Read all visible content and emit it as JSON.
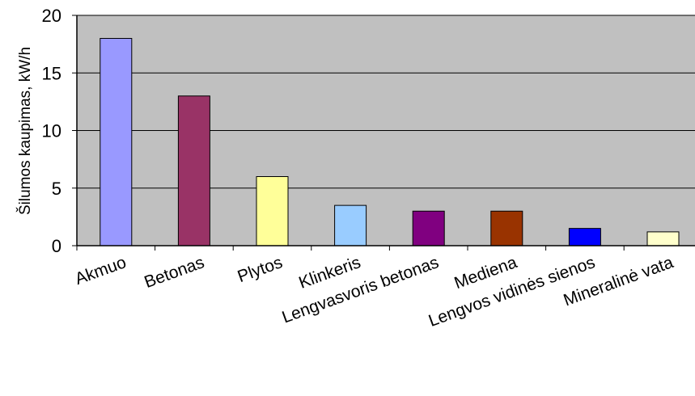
{
  "chart_data": {
    "type": "bar",
    "title": "",
    "xlabel": "",
    "ylabel": "Šilumos kaupimas, kW/h",
    "categories": [
      "Akmuo",
      "Betonas",
      "Plytos",
      "Klinkeris",
      "Lengvasvoris betonas",
      "Mediena",
      "Lengvos vidinės sienos",
      "Mineralinė vata"
    ],
    "values": [
      18,
      13,
      6,
      3.5,
      3,
      3,
      1.5,
      1.2
    ],
    "bar_colors": [
      "#9999ff",
      "#993366",
      "#ffff99",
      "#99ccff",
      "#800080",
      "#993300",
      "#0000ff",
      "#ffffcc"
    ],
    "ylim": [
      0,
      20
    ],
    "yticks": [
      0,
      5,
      10,
      15,
      20
    ],
    "grid": true,
    "legend": "none",
    "plot_background": "#c0c0c0"
  }
}
